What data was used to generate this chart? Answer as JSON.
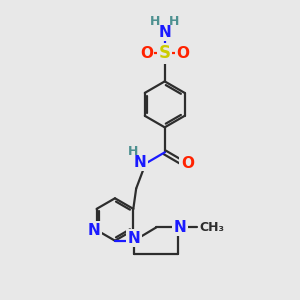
{
  "bg_color": "#e8e8e8",
  "bond_color": "#2d2d2d",
  "bond_width": 1.6,
  "atom_colors": {
    "C": "#2d2d2d",
    "N": "#1a1aff",
    "O": "#ff2200",
    "S": "#cccc00",
    "H": "#4d9090"
  },
  "figsize": [
    3.0,
    3.0
  ],
  "dpi": 100
}
